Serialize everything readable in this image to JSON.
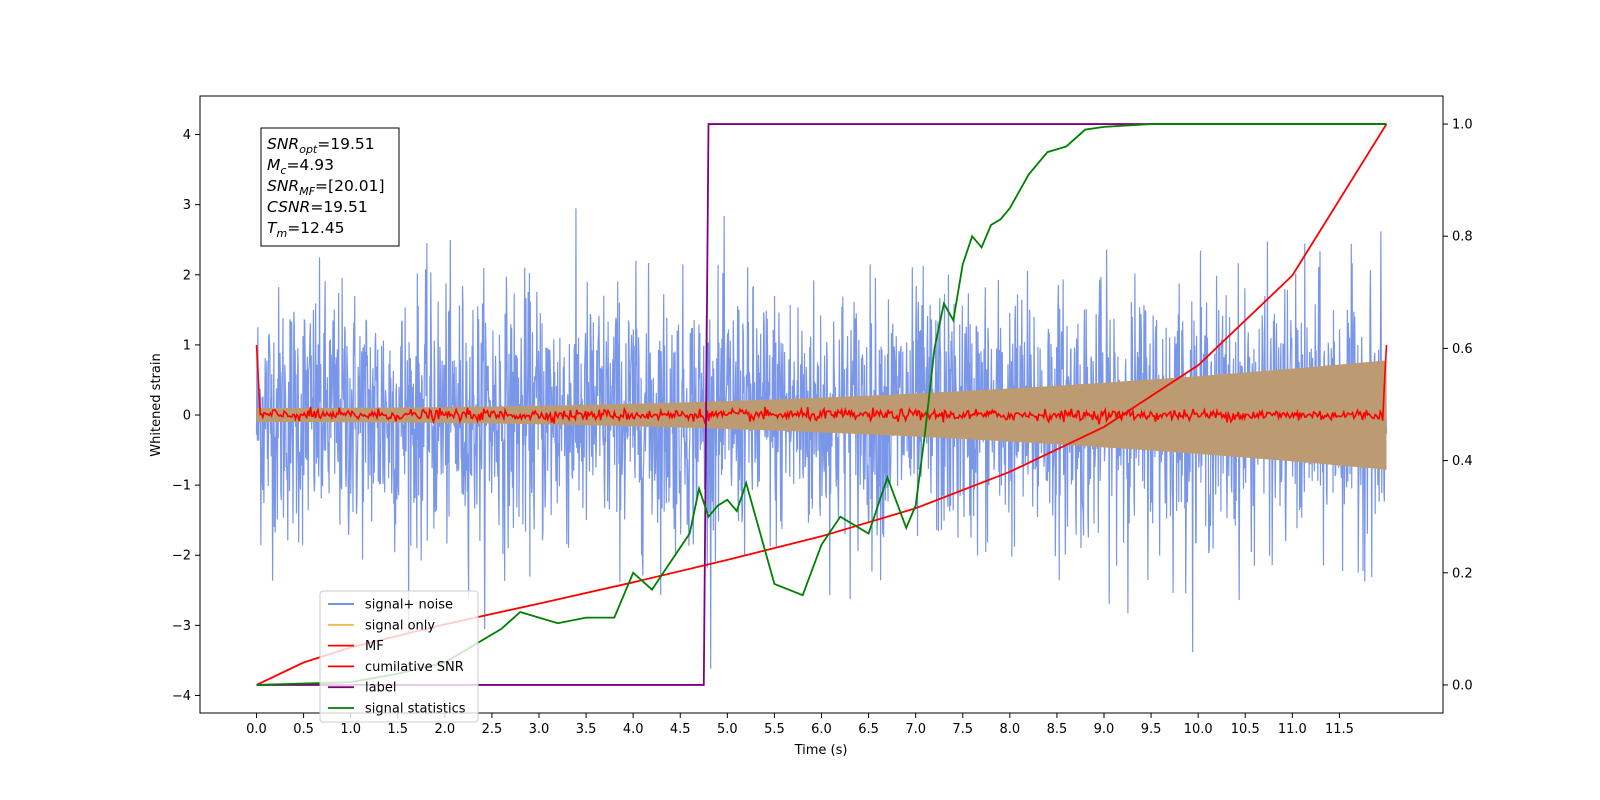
{
  "chart_data": {
    "type": "line",
    "xlabel": "Time (s)",
    "ylabel": "Whitened strain",
    "xlim": [
      -0.6,
      12.6
    ],
    "ylim_left": [
      -4.25,
      4.55
    ],
    "ylim_right": [
      -0.05,
      1.05
    ],
    "x_ticks": [
      0.0,
      0.5,
      1.0,
      1.5,
      2.0,
      2.5,
      3.0,
      3.5,
      4.0,
      4.5,
      5.0,
      5.5,
      6.0,
      6.5,
      7.0,
      7.5,
      8.0,
      8.5,
      9.0,
      9.5,
      10.0,
      10.5,
      11.0,
      11.5
    ],
    "x_tick_labels": [
      "0.0",
      "0.5",
      "1.0",
      "1.5",
      "2.0",
      "2.5",
      "3.0",
      "3.5",
      "4.0",
      "4.5",
      "5.0",
      "5.5",
      "6.0",
      "6.5",
      "7.0",
      "7.5",
      "8.0",
      "8.5",
      "9.0",
      "9.5",
      "10.0",
      "10.5",
      "11.0",
      "11.5"
    ],
    "y_left_ticks": [
      -4,
      -3,
      -2,
      -1,
      0,
      1,
      2,
      3,
      4
    ],
    "y_left_tick_labels": [
      "−4",
      "−3",
      "−2",
      "−1",
      "0",
      "1",
      "2",
      "3",
      "4"
    ],
    "y_right_ticks": [
      0.0,
      0.2,
      0.4,
      0.6,
      0.8,
      1.0
    ],
    "y_right_tick_labels": [
      "0.0",
      "0.2",
      "0.4",
      "0.6",
      "0.8",
      "1.0"
    ],
    "duration": [
      0.0,
      12.0
    ],
    "grid": false,
    "legend_position": "lower-left",
    "series": [
      {
        "name": "signal+ noise",
        "axis": "left",
        "color": "#6384e4",
        "description_values": {
          "noise_std": 0.9,
          "max_abs": 4.2
        }
      },
      {
        "name": "signal only",
        "axis": "left",
        "color": "#f5b856",
        "envelope_start": 0.1,
        "envelope_end": 0.78
      },
      {
        "name": "MF",
        "axis": "left",
        "color": "#ff0000",
        "x": [
          0.0,
          0.03,
          12.0,
          12.03
        ],
        "y": [
          1.0,
          0.0,
          0.0,
          1.0
        ]
      },
      {
        "name": "cumilative SNR",
        "axis": "right",
        "color": "#ff0000",
        "x": [
          0.0,
          0.5,
          1.0,
          2.0,
          3.0,
          4.0,
          5.0,
          6.0,
          7.0,
          8.0,
          9.0,
          10.0,
          11.0,
          12.0
        ],
        "y": [
          0.0,
          0.04,
          0.067,
          0.108,
          0.145,
          0.183,
          0.223,
          0.265,
          0.315,
          0.38,
          0.46,
          0.57,
          0.73,
          1.0
        ]
      },
      {
        "name": "label",
        "axis": "right",
        "color": "#800080",
        "x": [
          0.0,
          4.75,
          4.8,
          12.0
        ],
        "y": [
          0.0,
          0.0,
          1.0,
          1.0
        ]
      },
      {
        "name": "signal statistics",
        "axis": "right",
        "color": "#008000",
        "x": [
          0.0,
          1.0,
          1.5,
          2.0,
          2.3,
          2.6,
          2.8,
          3.0,
          3.2,
          3.5,
          3.8,
          4.0,
          4.2,
          4.4,
          4.6,
          4.7,
          4.8,
          4.9,
          5.0,
          5.1,
          5.2,
          5.3,
          5.4,
          5.5,
          5.8,
          6.0,
          6.2,
          6.5,
          6.7,
          6.9,
          7.0,
          7.1,
          7.2,
          7.3,
          7.4,
          7.5,
          7.6,
          7.7,
          7.8,
          7.9,
          8.0,
          8.2,
          8.4,
          8.6,
          8.8,
          9.0,
          9.5,
          10.0,
          12.0
        ],
        "y": [
          0.0,
          0.005,
          0.02,
          0.04,
          0.07,
          0.1,
          0.13,
          0.12,
          0.11,
          0.12,
          0.12,
          0.2,
          0.17,
          0.22,
          0.27,
          0.35,
          0.3,
          0.32,
          0.33,
          0.31,
          0.36,
          0.3,
          0.24,
          0.18,
          0.16,
          0.25,
          0.3,
          0.27,
          0.37,
          0.28,
          0.32,
          0.45,
          0.6,
          0.68,
          0.65,
          0.75,
          0.8,
          0.78,
          0.82,
          0.83,
          0.85,
          0.91,
          0.95,
          0.96,
          0.99,
          0.995,
          1.0,
          1.0,
          1.0
        ]
      }
    ],
    "annotation": {
      "lines": [
        {
          "base": "SNR",
          "sub": "opt",
          "value": "=19.51"
        },
        {
          "base": "M",
          "sub": "c",
          "value": "=4.93"
        },
        {
          "base": "SNR",
          "sub": "MF",
          "value": "=[20.01]"
        },
        {
          "base": "CSNR",
          "sub": "",
          "value": "=19.51"
        },
        {
          "base": "T",
          "sub": "m",
          "value": "=12.45"
        }
      ]
    }
  }
}
